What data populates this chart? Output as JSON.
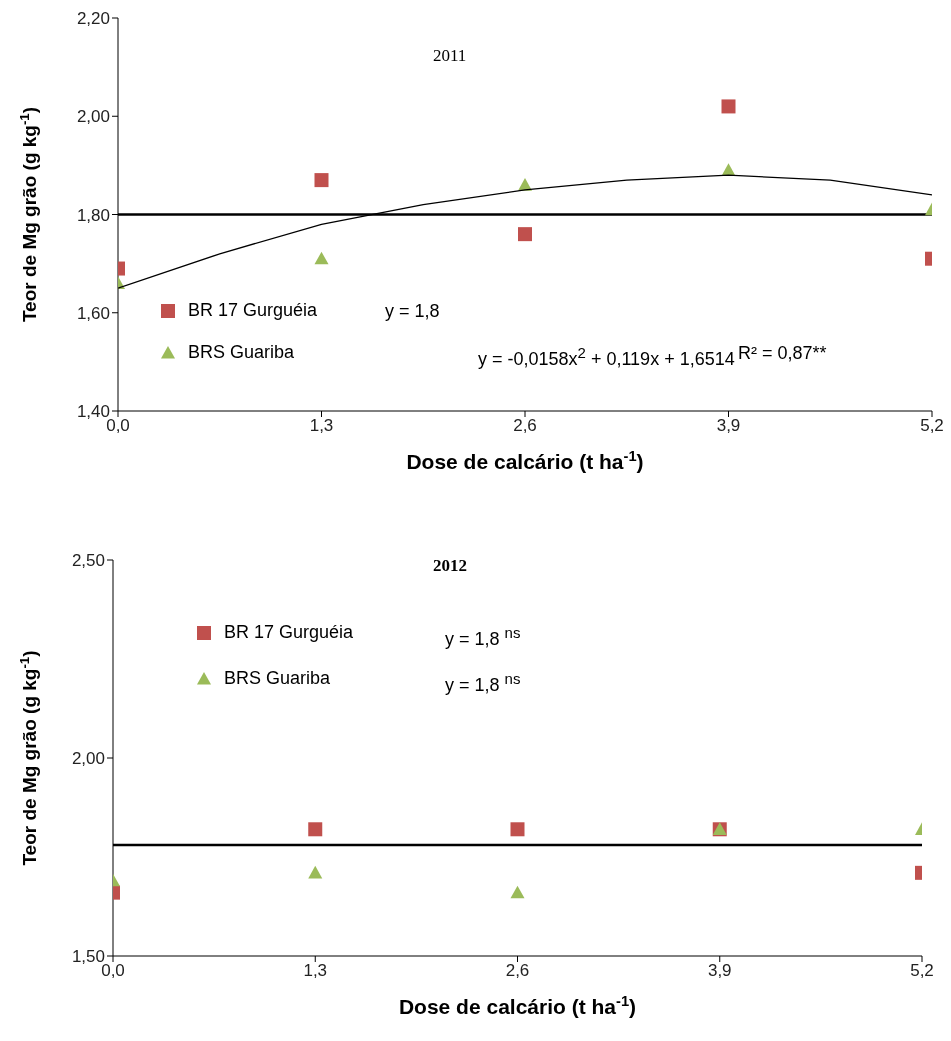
{
  "chart_data": [
    {
      "type": "scatter",
      "title": "2011",
      "xlabel": "Dose de calcário (t ha$^{-1}$)",
      "ylabel": "Teor de Mg grão (g kg$^{-1}$)",
      "x": [
        0,
        1.3,
        2.6,
        3.9,
        5.2
      ],
      "series": [
        {
          "name": "BR 17 Gurguéia",
          "color": "#c0504d",
          "marker": "square",
          "values": [
            1.69,
            1.87,
            1.76,
            2.02,
            1.71
          ]
        },
        {
          "name": "BRS Guariba",
          "color": "#9bbb59",
          "marker": "triangle",
          "values": [
            1.66,
            1.71,
            1.86,
            1.89,
            1.81
          ]
        },
        {
          "type": "line",
          "color": "#000000",
          "marker": "none",
          "x": [
            0,
            0.65,
            1.3,
            1.95,
            2.6,
            3.25,
            3.9,
            4.55,
            5.2
          ],
          "values": [
            1.65,
            1.72,
            1.78,
            1.82,
            1.85,
            1.87,
            1.88,
            1.87,
            1.84
          ]
        }
      ],
      "ref_lines": [
        {
          "axis": "y",
          "value": 1.8,
          "color": "#000000"
        }
      ],
      "annotations": [
        "y = 1,8",
        "y = -0,0158x$^{2}$ + 0,119x + 1,6514",
        "R² = 0,87**"
      ],
      "xlim": [
        0,
        5.2
      ],
      "xticks": [
        {
          "value": 0,
          "label": "0,0"
        },
        {
          "value": 1.3,
          "label": "1,3"
        },
        {
          "value": 2.6,
          "label": "2,6"
        },
        {
          "value": 3.9,
          "label": "3,9"
        },
        {
          "value": 5.2,
          "label": "5,2"
        }
      ],
      "ylim": [
        1.4,
        2.2
      ],
      "yticks": [
        {
          "value": 1.4,
          "label": "1,40"
        },
        {
          "value": 1.6,
          "label": "1,60"
        },
        {
          "value": 1.8,
          "label": "1,80"
        },
        {
          "value": 2.0,
          "label": "2,00"
        },
        {
          "value": 2.2,
          "label": "2,20"
        }
      ],
      "grid": false,
      "legend": "bottom left"
    },
    {
      "type": "scatter",
      "title": "2012",
      "xlabel": "Dose de calcário (t ha$^{-1}$)",
      "ylabel": "Teor de Mg grão (g kg$^{-1}$)",
      "x": [
        0,
        1.3,
        2.6,
        3.9,
        5.2
      ],
      "series": [
        {
          "name": "BR 17 Gurguéia",
          "color": "#c0504d",
          "marker": "square",
          "values": [
            1.66,
            1.82,
            1.82,
            1.82,
            1.71
          ]
        },
        {
          "name": "BRS Guariba",
          "color": "#9bbb59",
          "marker": "triangle",
          "values": [
            1.69,
            1.71,
            1.66,
            1.82,
            1.82
          ]
        }
      ],
      "ref_lines": [
        {
          "axis": "y",
          "value": 1.78,
          "color": "#000000"
        }
      ],
      "annotations": [
        "y = 1,8 $^{ns}$",
        "y = 1,8 $^{ns}$"
      ],
      "xlim": [
        0,
        5.2
      ],
      "xticks": [
        {
          "value": 0,
          "label": "0,0"
        },
        {
          "value": 1.3,
          "label": "1,3"
        },
        {
          "value": 2.6,
          "label": "2,6"
        },
        {
          "value": 3.9,
          "label": "3,9"
        },
        {
          "value": 5.2,
          "label": "5,2"
        }
      ],
      "ylim": [
        1.5,
        2.5
      ],
      "yticks": [
        {
          "value": 1.5,
          "label": "1,50"
        },
        {
          "value": 2.0,
          "label": "2,00"
        },
        {
          "value": 2.5,
          "label": "2,50"
        }
      ],
      "grid": false,
      "legend": "top left"
    }
  ]
}
